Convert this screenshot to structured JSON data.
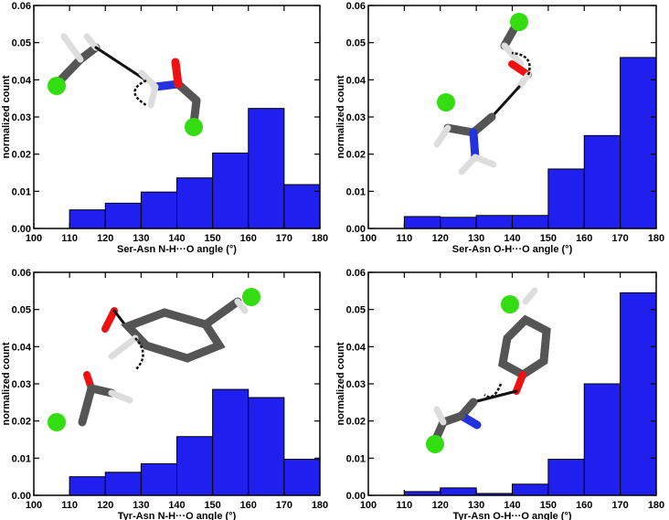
{
  "chart_data": [
    {
      "type": "histogram",
      "xlabel": "Ser-Asn N-H···O angle (°)",
      "ylabel": "normalized count",
      "color": "#1f1ff0",
      "bins": [
        100,
        110,
        120,
        130,
        140,
        150,
        160,
        170,
        180
      ],
      "values": [
        0,
        0.005,
        0.0068,
        0.0098,
        0.0136,
        0.0203,
        0.0323,
        0.0118
      ],
      "xlim": [
        100,
        180
      ],
      "xticks": [
        100,
        110,
        120,
        130,
        140,
        150,
        160,
        170,
        180
      ],
      "ylim": [
        0,
        0.06
      ],
      "yticks": [
        {
          "value": 0,
          "label": "0.00"
        },
        0.01,
        0.02,
        0.03,
        0.04,
        0.05,
        0.06
      ]
    },
    {
      "type": "histogram",
      "xlabel": "Ser-Asn O-H···O angle (°)",
      "ylabel": "normalized count",
      "color": "#1f1ff0",
      "bins": [
        100,
        110,
        120,
        130,
        140,
        150,
        160,
        170,
        180
      ],
      "values": [
        0,
        0.0032,
        0.003,
        0.0035,
        0.0035,
        0.016,
        0.025,
        0.046
      ],
      "xlim": [
        100,
        180
      ],
      "xticks": [
        100,
        110,
        120,
        130,
        140,
        150,
        160,
        170,
        180
      ],
      "ylim": [
        0,
        0.06
      ],
      "yticks": [
        {
          "value": 0,
          "label": "0.00"
        },
        0.01,
        0.02,
        0.03,
        0.04,
        0.05,
        0.06
      ]
    },
    {
      "type": "histogram",
      "xlabel": "Tyr-Asn N-H···O angle (°)",
      "ylabel": "normalized count",
      "color": "#1f1ff0",
      "bins": [
        100,
        110,
        120,
        130,
        140,
        150,
        160,
        170,
        180
      ],
      "values": [
        0,
        0.005,
        0.0062,
        0.0085,
        0.0158,
        0.0285,
        0.0263,
        0.0097
      ],
      "xlim": [
        100,
        180
      ],
      "xticks": [
        100,
        110,
        120,
        130,
        140,
        150,
        160,
        170,
        180
      ],
      "ylim": [
        0,
        0.06
      ],
      "yticks": [
        {
          "value": 0,
          "label": "0.00"
        },
        0.01,
        0.02,
        0.03,
        0.04,
        0.05,
        0.06
      ]
    },
    {
      "type": "histogram",
      "xlabel": "Tyr-Asn O-H···O angle (°)",
      "ylabel": "normalized count",
      "color": "#1f1ff0",
      "bins": [
        100,
        110,
        120,
        130,
        140,
        150,
        160,
        170,
        180
      ],
      "values": [
        0,
        0.001,
        0.002,
        0.0005,
        0.003,
        0.0097,
        0.03,
        0.0545
      ],
      "xlim": [
        100,
        180
      ],
      "xticks": [
        100,
        110,
        120,
        130,
        140,
        150,
        160,
        170,
        180
      ],
      "ylim": [
        0,
        0.06
      ],
      "yticks": [
        {
          "value": 0,
          "label": "0.00"
        },
        0.01,
        0.02,
        0.03,
        0.04,
        0.05,
        0.06
      ]
    }
  ]
}
